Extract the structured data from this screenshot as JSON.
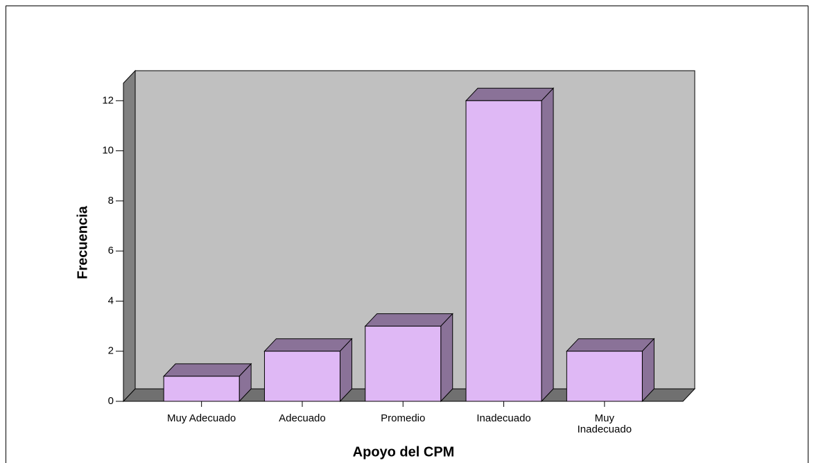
{
  "chart_data": {
    "type": "bar",
    "xlabel": "Apoyo del CPM",
    "ylabel": "Frecuencia",
    "categories": [
      "Muy Adecuado",
      "Adecuado",
      "Promedio",
      "Inadecuado",
      "Muy\nInadecuado"
    ],
    "values": [
      1,
      2,
      3,
      12,
      2
    ],
    "color": "#dfb8f5",
    "ylim": [
      0,
      12.7
    ],
    "yticks": [
      0,
      2,
      4,
      6,
      8,
      10,
      12
    ]
  }
}
